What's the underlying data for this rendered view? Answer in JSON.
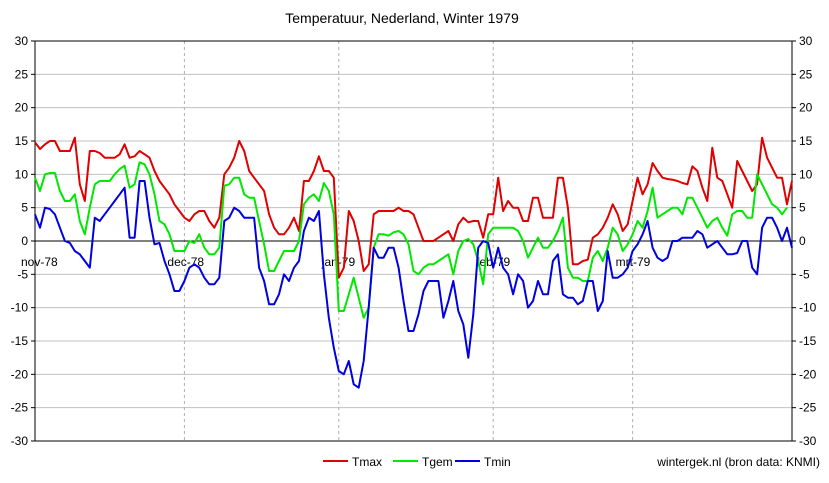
{
  "chart_data": {
    "type": "line",
    "title": "Temperatuur, Nederland, Winter 1979",
    "source": "wintergek.nl (bron data: KNMI)",
    "ylim": [
      -30,
      30
    ],
    "yticks": [
      -30,
      -25,
      -20,
      -15,
      -10,
      -5,
      0,
      5,
      10,
      15,
      20,
      25,
      30
    ],
    "xlim": [
      0,
      152
    ],
    "month_labels": [
      {
        "label": "nov-78",
        "x": 0
      },
      {
        "label": "dec-78",
        "x": 30
      },
      {
        "label": "jan-79",
        "x": 61
      },
      {
        "label": "feb-79",
        "x": 92
      },
      {
        "label": "mrt-79",
        "x": 120
      }
    ],
    "grid": {
      "horizontal": true,
      "vertical_months": true
    },
    "legend_position": "bottom-center",
    "series": [
      {
        "name": "Tmax",
        "color": "#e00000",
        "values": [
          14.8,
          13.8,
          14.5,
          15,
          15,
          13.5,
          13.5,
          13.5,
          15.5,
          8.5,
          6,
          13.5,
          13.5,
          13.2,
          12.5,
          12.5,
          12.5,
          13,
          14.5,
          12.5,
          12.7,
          13.5,
          13,
          12.5,
          10.5,
          9,
          8,
          7,
          5.5,
          4.5,
          3.5,
          3,
          4,
          4.5,
          4.5,
          3,
          2,
          3.5,
          10,
          11,
          12.5,
          15,
          13.5,
          10.5,
          9.5,
          8.5,
          7.5,
          4,
          2,
          1,
          1,
          2,
          3.5,
          1.5,
          9,
          9,
          10.5,
          12.7,
          10.5,
          10.5,
          9.5,
          -5.5,
          -4,
          4.5,
          3,
          0,
          -4.5,
          -3.5,
          4,
          4.5,
          4.5,
          4.5,
          4.5,
          5,
          4.5,
          4.5,
          4,
          2,
          0,
          0,
          0,
          0.5,
          1,
          1.5,
          0,
          2.5,
          3.5,
          2.8,
          3,
          3,
          0.5,
          4,
          4,
          9.5,
          4.5,
          6,
          5,
          5,
          3,
          3,
          6.5,
          6.5,
          3.5,
          3.5,
          3.5,
          9.5,
          9.5,
          5,
          -3.5,
          -3.5,
          -3,
          -2.8,
          0.5,
          1,
          2,
          3.5,
          5.5,
          4,
          1.5,
          2.5,
          6,
          9.5,
          7,
          8.5,
          11.7,
          10.5,
          9.5,
          9.3,
          9.2,
          9,
          8.7,
          8.5,
          11.2,
          10.5,
          8,
          6,
          14,
          9.5,
          9,
          7,
          5,
          12,
          10.5,
          9,
          7.5,
          8.5,
          15.5,
          12.5,
          11,
          9.5,
          9.5,
          5.5,
          9
        ]
      },
      {
        "name": "Tgem",
        "color": "#00e800",
        "values": [
          9.5,
          7.5,
          10,
          10.2,
          10.2,
          7.5,
          6,
          6,
          7,
          3,
          1,
          5,
          8.5,
          9,
          9,
          9,
          10,
          10.8,
          11.3,
          8,
          8.5,
          11.8,
          11.5,
          10,
          7,
          3,
          2.5,
          1,
          -1.5,
          -1.5,
          -1.5,
          0,
          -0.3,
          1,
          -1,
          -2,
          -2,
          -1,
          8.3,
          8.5,
          9.5,
          9.5,
          7,
          6.5,
          6.5,
          3,
          -0.5,
          -4.5,
          -4.5,
          -3,
          -1.5,
          -1.5,
          -1.5,
          0,
          5.5,
          6.5,
          7,
          6,
          8.7,
          7.5,
          4,
          -10.5,
          -10.5,
          -8,
          -5.5,
          -8.5,
          -11.5,
          -10,
          -1,
          1,
          1,
          0.8,
          1.3,
          1.5,
          1,
          -0.5,
          -4.5,
          -5,
          -4,
          -3.5,
          -3.5,
          -3,
          -2.5,
          -2,
          -5,
          -1.5,
          0,
          0.3,
          -0.5,
          -3,
          -6.5,
          1,
          2,
          2,
          2,
          2,
          2,
          1.5,
          0,
          -2.5,
          -1,
          0.5,
          -1,
          -1,
          0,
          1.5,
          3.5,
          -4,
          -5.5,
          -5.5,
          -6,
          -6,
          -2.5,
          -1.5,
          -3,
          -1,
          2,
          1,
          -1.5,
          -0.5,
          1,
          3,
          2,
          4.5,
          8,
          3.5,
          4,
          4.5,
          5,
          5,
          4,
          6.5,
          6.5,
          5,
          3.5,
          2,
          3,
          3.5,
          2,
          0.8,
          4,
          4.5,
          4.5,
          3.5,
          3.5,
          10,
          8.5,
          7,
          5.5,
          5,
          4,
          5
        ]
      },
      {
        "name": "Tmin",
        "color": "#0000e0",
        "values": [
          4,
          2,
          5,
          4.8,
          4,
          2,
          0,
          -0.3,
          -1.5,
          -2,
          -3,
          -4,
          3.5,
          3,
          4,
          5,
          6,
          7,
          8,
          0.5,
          0.5,
          9,
          9,
          3.5,
          -0.5,
          -0.3,
          -3,
          -5,
          -7.5,
          -7.5,
          -6,
          -4,
          -3.5,
          -4,
          -5.5,
          -6.5,
          -6.5,
          -5.5,
          3,
          3.5,
          5,
          4.5,
          3.5,
          3.5,
          3.5,
          -4,
          -6,
          -9.5,
          -9.5,
          -8,
          -5,
          -6,
          -4,
          -3,
          1.5,
          3.5,
          3,
          4.5,
          -5,
          -11.5,
          -16,
          -19.5,
          -20,
          -18,
          -21.5,
          -22,
          -18,
          -10,
          -1,
          -2.5,
          -2.5,
          -1,
          -1,
          -4,
          -9,
          -13.5,
          -13.5,
          -11,
          -7.5,
          -6,
          -6,
          -6,
          -11.5,
          -9,
          -6,
          -10.5,
          -12.5,
          -17.5,
          -11,
          -1,
          0,
          -0.3,
          -4,
          -1,
          -4,
          -5,
          -8,
          -5,
          -6,
          -10,
          -9,
          -6,
          -8,
          -8,
          -3,
          -2,
          -8,
          -8.5,
          -8.5,
          -9.5,
          -9,
          -6,
          -6,
          -10.5,
          -9,
          -1.5,
          -5.5,
          -5.5,
          -5,
          -4,
          -1.5,
          -0.5,
          1,
          3,
          -1,
          -2.5,
          -3,
          -2.5,
          0,
          0,
          0.5,
          0.5,
          0.5,
          1.5,
          1,
          -1,
          -0.5,
          0,
          -1,
          -2,
          -2,
          -1.8,
          0,
          0,
          -4,
          -5,
          2,
          3.5,
          3.5,
          2,
          0,
          2,
          -1
        ]
      }
    ]
  }
}
